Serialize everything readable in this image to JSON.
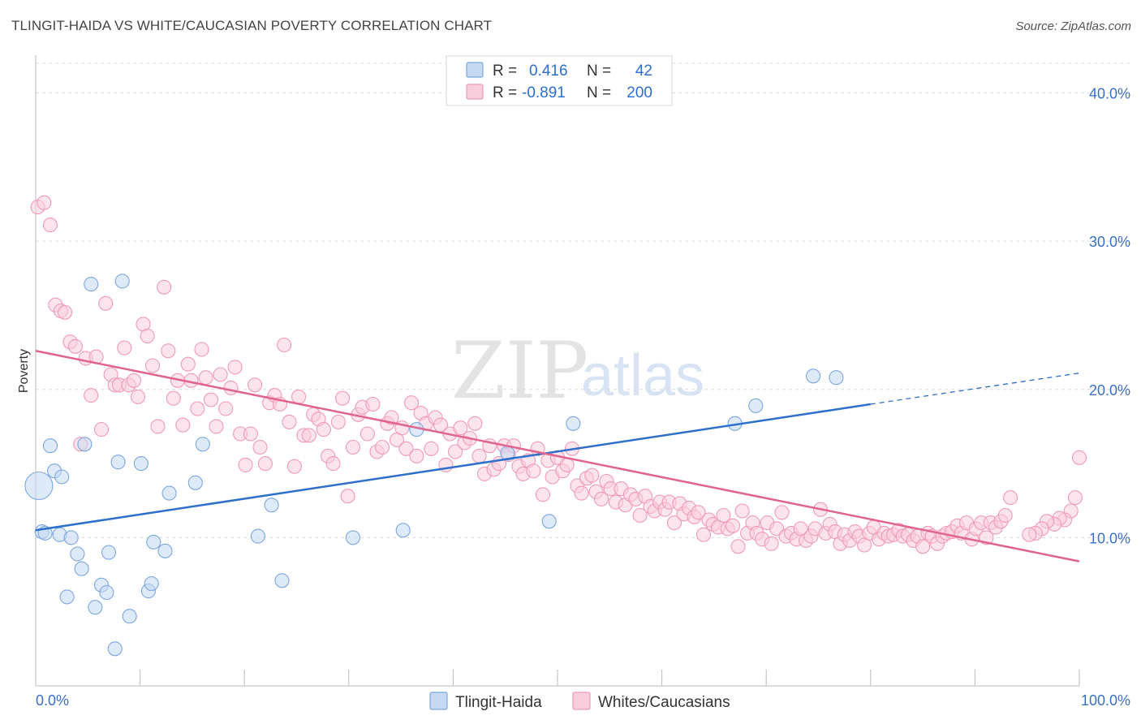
{
  "header": {
    "title": "TLINGIT-HAIDA VS WHITE/CAUCASIAN POVERTY CORRELATION CHART",
    "source": "Source: ZipAtlas.com"
  },
  "legend": {
    "rows": [
      {
        "r_label": "R = ",
        "r_value": "0.416",
        "n_label": "N = ",
        "n_value": "42"
      },
      {
        "r_label": "R = ",
        "r_value": "-0.891",
        "n_label": "N = ",
        "n_value": "200"
      }
    ]
  },
  "watermark": {
    "zip": "ZIP",
    "atlas": "atlas"
  },
  "chart_data": {
    "type": "scatter",
    "ylabel": "Poverty",
    "xlim": [
      0,
      100
    ],
    "ylim": [
      0,
      42
    ],
    "x_tick_labels": [
      "0.0%",
      "100.0%"
    ],
    "y_ticks": [
      {
        "value": 10,
        "label": "10.0%"
      },
      {
        "value": 20,
        "label": "20.0%"
      },
      {
        "value": 30,
        "label": "30.0%"
      },
      {
        "value": 40,
        "label": "40.0%"
      }
    ],
    "grid": true,
    "legend_position": "top-center",
    "series": [
      {
        "name": "Tlingit-Haida",
        "color": "#7ba7e0",
        "fill": "#c5d9f3",
        "line_color": "#2e6fcc",
        "trend": {
          "x0": 0,
          "y0": 10.5,
          "x1": 80,
          "y1": 19.0,
          "dash_to_x": 100,
          "dash_to_y": 21.1
        },
        "points": [
          [
            0.3,
            13.5
          ],
          [
            0.6,
            10.4
          ],
          [
            0.9,
            10.3
          ],
          [
            1.4,
            16.2
          ],
          [
            1.8,
            14.5
          ],
          [
            2.3,
            10.2
          ],
          [
            2.5,
            14.1
          ],
          [
            3.0,
            6.0
          ],
          [
            3.4,
            10.0
          ],
          [
            4.0,
            8.9
          ],
          [
            4.4,
            7.9
          ],
          [
            4.7,
            16.3
          ],
          [
            5.3,
            27.1
          ],
          [
            5.7,
            5.3
          ],
          [
            6.3,
            6.8
          ],
          [
            6.8,
            6.3
          ],
          [
            7.0,
            9.0
          ],
          [
            7.6,
            2.5
          ],
          [
            7.9,
            15.1
          ],
          [
            8.3,
            27.3
          ],
          [
            9.0,
            4.7
          ],
          [
            10.1,
            15.0
          ],
          [
            10.8,
            6.4
          ],
          [
            11.1,
            6.9
          ],
          [
            11.3,
            9.7
          ],
          [
            12.4,
            9.1
          ],
          [
            12.8,
            13.0
          ],
          [
            15.3,
            13.7
          ],
          [
            16.0,
            16.3
          ],
          [
            21.3,
            10.1
          ],
          [
            22.6,
            12.2
          ],
          [
            23.6,
            7.1
          ],
          [
            30.4,
            10.0
          ],
          [
            35.2,
            10.5
          ],
          [
            36.5,
            17.3
          ],
          [
            45.2,
            15.7
          ],
          [
            49.2,
            11.1
          ],
          [
            51.5,
            17.7
          ],
          [
            67.0,
            17.7
          ],
          [
            69.0,
            18.9
          ],
          [
            74.5,
            20.9
          ],
          [
            76.7,
            20.8
          ]
        ]
      },
      {
        "name": "Whites/Caucasians",
        "color": "#f09ab6",
        "fill": "#f9cedc",
        "line_color": "#e0648f",
        "trend": {
          "x0": 0,
          "y0": 22.6,
          "x1": 100,
          "y1": 8.4
        },
        "points": [
          [
            0.2,
            32.3
          ],
          [
            0.8,
            32.6
          ],
          [
            1.4,
            31.1
          ],
          [
            1.9,
            25.7
          ],
          [
            2.4,
            25.3
          ],
          [
            2.8,
            25.2
          ],
          [
            3.3,
            23.2
          ],
          [
            3.8,
            22.9
          ],
          [
            4.3,
            16.3
          ],
          [
            4.8,
            22.1
          ],
          [
            5.3,
            19.6
          ],
          [
            5.8,
            22.2
          ],
          [
            6.3,
            17.3
          ],
          [
            6.7,
            25.8
          ],
          [
            7.2,
            21.0
          ],
          [
            7.6,
            20.3
          ],
          [
            8.0,
            20.3
          ],
          [
            8.5,
            22.8
          ],
          [
            8.9,
            20.3
          ],
          [
            9.4,
            20.6
          ],
          [
            9.8,
            19.5
          ],
          [
            10.3,
            24.4
          ],
          [
            10.7,
            23.6
          ],
          [
            11.2,
            21.6
          ],
          [
            11.7,
            17.5
          ],
          [
            12.3,
            26.9
          ],
          [
            12.7,
            22.6
          ],
          [
            13.2,
            19.4
          ],
          [
            13.6,
            20.6
          ],
          [
            14.1,
            17.6
          ],
          [
            14.6,
            21.7
          ],
          [
            14.9,
            20.6
          ],
          [
            15.5,
            18.7
          ],
          [
            15.9,
            22.7
          ],
          [
            16.3,
            20.8
          ],
          [
            16.8,
            19.3
          ],
          [
            17.3,
            17.5
          ],
          [
            17.7,
            21.0
          ],
          [
            18.2,
            18.7
          ],
          [
            18.7,
            20.1
          ],
          [
            19.1,
            21.5
          ],
          [
            19.6,
            17.0
          ],
          [
            20.1,
            14.9
          ],
          [
            20.6,
            17.0
          ],
          [
            21.0,
            20.3
          ],
          [
            21.5,
            16.1
          ],
          [
            22.0,
            15.0
          ],
          [
            22.4,
            19.1
          ],
          [
            22.9,
            19.6
          ],
          [
            23.4,
            19.0
          ],
          [
            23.8,
            23.0
          ],
          [
            24.3,
            17.8
          ],
          [
            24.8,
            14.8
          ],
          [
            25.2,
            19.5
          ],
          [
            25.7,
            16.9
          ],
          [
            26.2,
            16.9
          ],
          [
            26.6,
            18.3
          ],
          [
            27.1,
            18.0
          ],
          [
            27.6,
            17.3
          ],
          [
            28.0,
            15.5
          ],
          [
            28.5,
            15.0
          ],
          [
            29.0,
            17.8
          ],
          [
            29.4,
            19.4
          ],
          [
            29.9,
            12.8
          ],
          [
            30.4,
            16.1
          ],
          [
            30.9,
            18.3
          ],
          [
            31.3,
            18.8
          ],
          [
            31.8,
            17.0
          ],
          [
            32.3,
            19.0
          ],
          [
            32.7,
            15.8
          ],
          [
            33.2,
            16.1
          ],
          [
            33.7,
            17.7
          ],
          [
            34.1,
            18.1
          ],
          [
            34.6,
            16.6
          ],
          [
            35.1,
            17.4
          ],
          [
            35.5,
            16.0
          ],
          [
            36.0,
            19.1
          ],
          [
            36.5,
            15.5
          ],
          [
            36.9,
            18.4
          ],
          [
            37.4,
            17.7
          ],
          [
            37.9,
            16.0
          ],
          [
            38.3,
            18.1
          ],
          [
            38.8,
            17.6
          ],
          [
            39.3,
            14.9
          ],
          [
            39.7,
            17.0
          ],
          [
            40.2,
            15.8
          ],
          [
            40.7,
            17.4
          ],
          [
            41.1,
            16.4
          ],
          [
            41.6,
            16.7
          ],
          [
            42.1,
            17.7
          ],
          [
            42.5,
            15.5
          ],
          [
            43.0,
            14.3
          ],
          [
            43.5,
            16.2
          ],
          [
            43.9,
            14.6
          ],
          [
            44.4,
            15.0
          ],
          [
            44.9,
            16.2
          ],
          [
            45.3,
            15.6
          ],
          [
            45.8,
            16.2
          ],
          [
            46.3,
            14.8
          ],
          [
            46.7,
            14.3
          ],
          [
            47.2,
            15.2
          ],
          [
            47.7,
            14.5
          ],
          [
            48.1,
            16.0
          ],
          [
            48.6,
            12.9
          ],
          [
            49.1,
            15.2
          ],
          [
            49.5,
            14.1
          ],
          [
            50.0,
            15.4
          ],
          [
            50.5,
            14.5
          ],
          [
            50.9,
            14.9
          ],
          [
            51.4,
            16.0
          ],
          [
            51.9,
            13.5
          ],
          [
            52.3,
            13.0
          ],
          [
            52.8,
            14.0
          ],
          [
            53.3,
            14.2
          ],
          [
            53.7,
            13.1
          ],
          [
            54.2,
            12.6
          ],
          [
            54.7,
            13.8
          ],
          [
            55.1,
            13.3
          ],
          [
            55.6,
            12.4
          ],
          [
            56.1,
            13.3
          ],
          [
            56.5,
            12.2
          ],
          [
            57.0,
            12.9
          ],
          [
            57.5,
            12.6
          ],
          [
            57.9,
            11.5
          ],
          [
            58.4,
            12.8
          ],
          [
            58.9,
            12.1
          ],
          [
            59.3,
            11.8
          ],
          [
            59.8,
            12.4
          ],
          [
            60.3,
            11.9
          ],
          [
            60.7,
            12.4
          ],
          [
            61.2,
            11.0
          ],
          [
            61.7,
            12.3
          ],
          [
            62.1,
            11.6
          ],
          [
            62.6,
            12.0
          ],
          [
            63.1,
            11.4
          ],
          [
            63.5,
            11.7
          ],
          [
            64.0,
            10.2
          ],
          [
            64.5,
            11.2
          ],
          [
            64.9,
            10.9
          ],
          [
            65.4,
            10.7
          ],
          [
            65.9,
            11.5
          ],
          [
            66.3,
            10.6
          ],
          [
            66.8,
            10.8
          ],
          [
            67.3,
            9.4
          ],
          [
            67.7,
            11.8
          ],
          [
            68.2,
            10.3
          ],
          [
            68.7,
            11.0
          ],
          [
            69.1,
            10.3
          ],
          [
            69.6,
            9.9
          ],
          [
            70.1,
            11.0
          ],
          [
            70.5,
            9.6
          ],
          [
            71.0,
            10.6
          ],
          [
            71.5,
            11.7
          ],
          [
            71.9,
            10.1
          ],
          [
            72.4,
            10.3
          ],
          [
            72.9,
            9.9
          ],
          [
            73.3,
            10.6
          ],
          [
            73.8,
            9.8
          ],
          [
            74.3,
            10.1
          ],
          [
            74.7,
            10.6
          ],
          [
            75.2,
            11.9
          ],
          [
            75.7,
            10.3
          ],
          [
            76.1,
            10.9
          ],
          [
            76.6,
            10.4
          ],
          [
            77.1,
            9.6
          ],
          [
            77.5,
            10.2
          ],
          [
            78.0,
            9.8
          ],
          [
            78.5,
            10.4
          ],
          [
            78.9,
            10.1
          ],
          [
            79.4,
            9.5
          ],
          [
            79.9,
            10.3
          ],
          [
            80.3,
            10.7
          ],
          [
            80.8,
            9.9
          ],
          [
            81.3,
            10.3
          ],
          [
            81.7,
            10.1
          ],
          [
            82.2,
            10.2
          ],
          [
            82.7,
            10.5
          ],
          [
            83.1,
            10.1
          ],
          [
            83.6,
            10.2
          ],
          [
            84.1,
            9.8
          ],
          [
            84.5,
            10.1
          ],
          [
            85.0,
            9.4
          ],
          [
            85.5,
            10.3
          ],
          [
            85.9,
            10.1
          ],
          [
            86.4,
            9.6
          ],
          [
            86.9,
            10.1
          ],
          [
            87.3,
            10.3
          ],
          [
            87.8,
            10.4
          ],
          [
            88.3,
            10.8
          ],
          [
            88.7,
            10.3
          ],
          [
            89.2,
            11.0
          ],
          [
            89.7,
            9.9
          ],
          [
            90.1,
            10.6
          ],
          [
            90.6,
            11.0
          ],
          [
            91.1,
            10.0
          ],
          [
            91.5,
            11.0
          ],
          [
            92.0,
            10.7
          ],
          [
            92.5,
            11.1
          ],
          [
            92.9,
            11.5
          ],
          [
            93.4,
            12.7
          ]
        ]
      }
    ],
    "extra_points_whites": [
      [
        100.0,
        15.4
      ],
      [
        99.6,
        12.7
      ],
      [
        99.2,
        11.8
      ],
      [
        98.6,
        11.2
      ],
      [
        98.1,
        11.3
      ],
      [
        97.6,
        10.9
      ],
      [
        96.9,
        11.1
      ],
      [
        96.4,
        10.6
      ],
      [
        95.8,
        10.3
      ],
      [
        95.2,
        10.2
      ]
    ]
  },
  "bottom_legend": {
    "items": [
      {
        "label": "Tlingit-Haida"
      },
      {
        "label": "Whites/Caucasians"
      }
    ]
  }
}
